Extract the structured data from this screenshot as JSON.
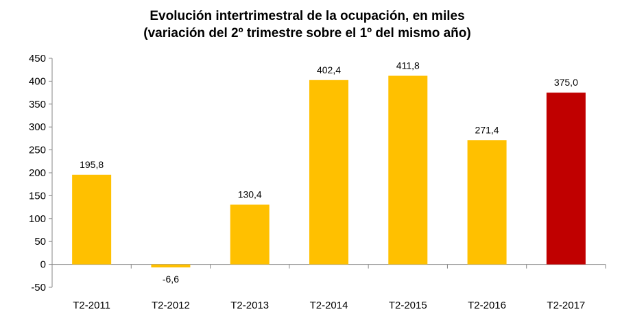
{
  "chart_data": {
    "type": "bar",
    "title": [
      "Evolución intertrimestral de la ocupación, en miles",
      "(variación del 2º trimestre sobre el 1º del mismo año)"
    ],
    "categories": [
      "T2-2011",
      "T2-2012",
      "T2-2013",
      "T2-2014",
      "T2-2015",
      "T2-2016",
      "T2-2017"
    ],
    "values": [
      195.8,
      -6.6,
      130.4,
      402.4,
      411.8,
      271.4,
      375.0
    ],
    "data_labels": [
      "195,8",
      "-6,6",
      "130,4",
      "402,4",
      "411,8",
      "271,4",
      "375,0"
    ],
    "colors": [
      "#FFC000",
      "#FFC000",
      "#FFC000",
      "#FFC000",
      "#FFC000",
      "#FFC000",
      "#C00000"
    ],
    "ylim": [
      -50,
      450
    ],
    "yticks": [
      -50,
      0,
      50,
      100,
      150,
      200,
      250,
      300,
      350,
      400,
      450
    ],
    "xlabel": "",
    "ylabel": "",
    "grid": false,
    "legend": "none"
  }
}
